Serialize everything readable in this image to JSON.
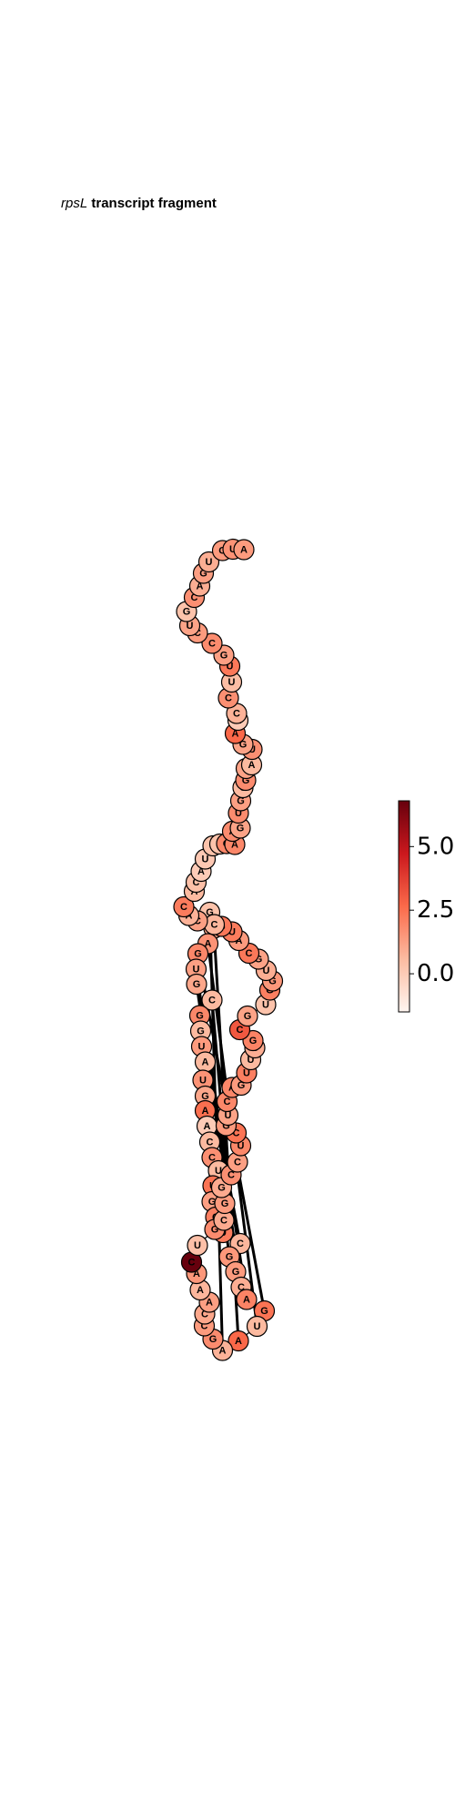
{
  "title": {
    "gene": "rpsL",
    "rest": "transcript fragment"
  },
  "colorbar": {
    "min": -1.5,
    "max": 6.8,
    "ticks": [
      {
        "value": 0.0,
        "label": "0.0"
      },
      {
        "value": 2.5,
        "label": "2.5"
      },
      {
        "value": 5.0,
        "label": "5.0"
      }
    ],
    "stops": [
      "#fff5f0",
      "#fcbba1",
      "#fb6a4a",
      "#cb181d",
      "#67000d"
    ]
  },
  "nucleotides": [
    {
      "label": "G",
      "value": 0.3
    },
    {
      "label": "A",
      "value": 1.2
    },
    {
      "label": "A",
      "value": 1.6
    },
    {
      "label": "G",
      "value": 1.9
    },
    {
      "label": "U",
      "value": 1.3
    },
    {
      "label": "G",
      "value": 1.1
    },
    {
      "label": "C",
      "value": 0.6
    },
    {
      "label": "G",
      "value": 1.9
    },
    {
      "label": "G",
      "value": 0.6
    },
    {
      "label": "U",
      "value": 1.4
    },
    {
      "label": "A",
      "value": 0.6
    },
    {
      "label": "U",
      "value": 1.6
    },
    {
      "label": "G",
      "value": 1.1
    },
    {
      "label": "A",
      "value": 2.5
    },
    {
      "label": "A",
      "value": 0.0
    },
    {
      "label": "C",
      "value": 0.6
    },
    {
      "label": "C",
      "value": 1.7
    },
    {
      "label": "U",
      "value": 0.6
    },
    {
      "label": "U",
      "value": 2.4
    },
    {
      "label": "G",
      "value": 1.3
    },
    {
      "label": "C",
      "value": 2.1
    },
    {
      "label": "U",
      "value": 2.2
    },
    {
      "label": "C",
      "value": 0.7
    },
    {
      "label": "G",
      "value": 1.5
    },
    {
      "label": "G",
      "value": 1.4
    },
    {
      "label": "C",
      "value": 0.9
    },
    {
      "label": "A",
      "value": 2.0
    },
    {
      "label": "G",
      "value": 2.4
    },
    {
      "label": "U",
      "value": 0.6
    },
    {
      "label": "A",
      "value": 2.7
    },
    {
      "label": "A",
      "value": 0.8
    },
    {
      "label": "G",
      "value": 1.8
    },
    {
      "label": "C",
      "value": 1.4
    },
    {
      "label": "C",
      "value": 1.1
    },
    {
      "label": "A",
      "value": 1.3
    },
    {
      "label": "A",
      "value": 0.7
    },
    {
      "label": "A",
      "value": 1.5
    },
    {
      "label": "C",
      "value": 6.8
    },
    {
      "label": "U",
      "value": 0.4
    },
    {
      "label": "G",
      "value": 1.8
    },
    {
      "label": "C",
      "value": 1.0
    },
    {
      "label": "G",
      "value": 1.4
    },
    {
      "label": "G",
      "value": 1.0
    },
    {
      "label": "C",
      "value": 1.7
    },
    {
      "label": "C",
      "value": 1.3
    },
    {
      "label": "U",
      "value": 1.9
    },
    {
      "label": "C",
      "value": 2.4
    },
    {
      "label": "G",
      "value": 1.4
    },
    {
      "label": "U",
      "value": 1.2
    },
    {
      "label": "C",
      "value": 1.9
    },
    {
      "label": "A",
      "value": 1.9
    },
    {
      "label": "G",
      "value": 1.4
    },
    {
      "label": "U",
      "value": 2.1
    },
    {
      "label": "U",
      "value": 0.6
    },
    {
      "label": "C",
      "value": 0.9
    },
    {
      "label": "G",
      "value": 2.0
    },
    {
      "label": "C",
      "value": 3.1
    },
    {
      "label": "G",
      "value": 1.2
    },
    {
      "label": "U",
      "value": 0.3
    },
    {
      "label": "G",
      "value": 2.1
    },
    {
      "label": "G",
      "value": 1.5
    },
    {
      "label": "U",
      "value": 0.9
    },
    {
      "label": "G",
      "value": 1.2
    },
    {
      "label": "C",
      "value": 2.3
    },
    {
      "label": "A",
      "value": 1.4
    },
    {
      "label": "U",
      "value": 2.2
    },
    {
      "label": "G",
      "value": 2.3
    },
    {
      "label": "C",
      "value": 0.7
    },
    {
      "label": "C",
      "value": 1.3
    },
    {
      "label": "A",
      "value": 0.8
    },
    {
      "label": "C",
      "value": 2.2
    },
    {
      "label": "A",
      "value": 0.6
    },
    {
      "label": "C",
      "value": 0.4
    },
    {
      "label": "A",
      "value": 0.0
    },
    {
      "label": "U",
      "value": 0.1
    },
    {
      "label": "U",
      "value": 0.3
    },
    {
      "label": "G",
      "value": 0.3
    },
    {
      "label": "G",
      "value": 1.9
    },
    {
      "label": "A",
      "value": 1.9
    },
    {
      "label": "A",
      "value": 1.8
    },
    {
      "label": "G",
      "value": 1.2
    },
    {
      "label": "U",
      "value": 1.8
    },
    {
      "label": "G",
      "value": 1.3
    },
    {
      "label": "C",
      "value": 0.6
    },
    {
      "label": "G",
      "value": 1.8
    },
    {
      "label": "U",
      "value": 1.2
    },
    {
      "label": "A",
      "value": 0.6
    },
    {
      "label": "U",
      "value": 1.7
    },
    {
      "label": "G",
      "value": 1.2
    },
    {
      "label": "A",
      "value": 2.7
    },
    {
      "label": "A",
      "value": 0.0
    },
    {
      "label": "C",
      "value": 0.8
    },
    {
      "label": "C",
      "value": 1.7
    },
    {
      "label": "U",
      "value": 0.5
    },
    {
      "label": "U",
      "value": 2.3
    },
    {
      "label": "G",
      "value": 1.3
    },
    {
      "label": "C",
      "value": 1.8
    },
    {
      "label": "C",
      "value": 1.4
    },
    {
      "label": "U",
      "value": 1.2
    },
    {
      "label": "G",
      "value": 0.3
    },
    {
      "label": "C",
      "value": 1.7
    },
    {
      "label": "A",
      "value": 0.9
    },
    {
      "label": "G",
      "value": 1.3
    },
    {
      "label": "U",
      "value": 0.9
    },
    {
      "label": "G",
      "value": 1.4
    },
    {
      "label": "U",
      "value": 1.6
    },
    {
      "label": "A",
      "value": 1.4
    }
  ]
}
